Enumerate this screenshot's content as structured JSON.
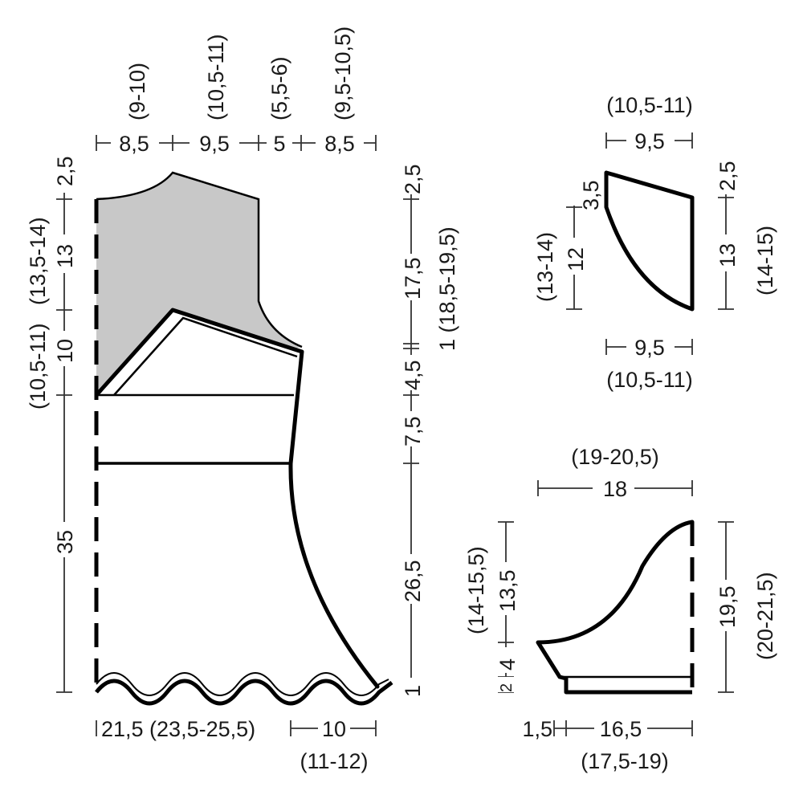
{
  "colors": {
    "shaded_area": "#c8c8c8",
    "line": "#000000",
    "text": "#1a1a1a"
  },
  "main_piece": {
    "top": {
      "seg1": "8,5",
      "seg1_alt": "(9-10)",
      "seg2": "9,5",
      "seg2_alt": "(10,5-11)",
      "seg3": "5",
      "seg3_alt": "(5,5-6)",
      "seg4": "8,5",
      "seg4_alt": "(9,5-10,5)"
    },
    "left": {
      "v1": "2,5",
      "v2": "13",
      "v2_alt": "(13,5-14)",
      "v3": "10",
      "v3_alt": "(10,5-11)",
      "v4": "35"
    },
    "right": {
      "v1": "2,5",
      "v2": "17,5",
      "v3": "1",
      "v3_alt": "1 (18,5-19,5)",
      "v4": "4,5",
      "v5": "7,5",
      "v6": "26,5",
      "v7": "1"
    },
    "bottom": {
      "b1": "21,5 (23,5-25,5)",
      "b2": "10",
      "b2_alt": "(11-12)"
    }
  },
  "piece_top_right": {
    "top": "9,5",
    "top_alt": "(10,5-11)",
    "left_small": "3,5",
    "left": "12",
    "left_alt": "(13-14)",
    "right_small": "2,5",
    "right": "13",
    "right_alt": "(14-15)",
    "bottom": "9,5",
    "bottom_alt": "(10,5-11)"
  },
  "piece_bottom_right": {
    "top": "18",
    "top_alt": "(19-20,5)",
    "left": "13,5",
    "left_alt": "(14-15,5)",
    "left_small1": "4",
    "left_small2": "2",
    "right": "19,5",
    "right_alt": "(20-21,5)",
    "bottom_small": "1,5",
    "bottom": "16,5",
    "bottom_alt": "(17,5-19)"
  }
}
